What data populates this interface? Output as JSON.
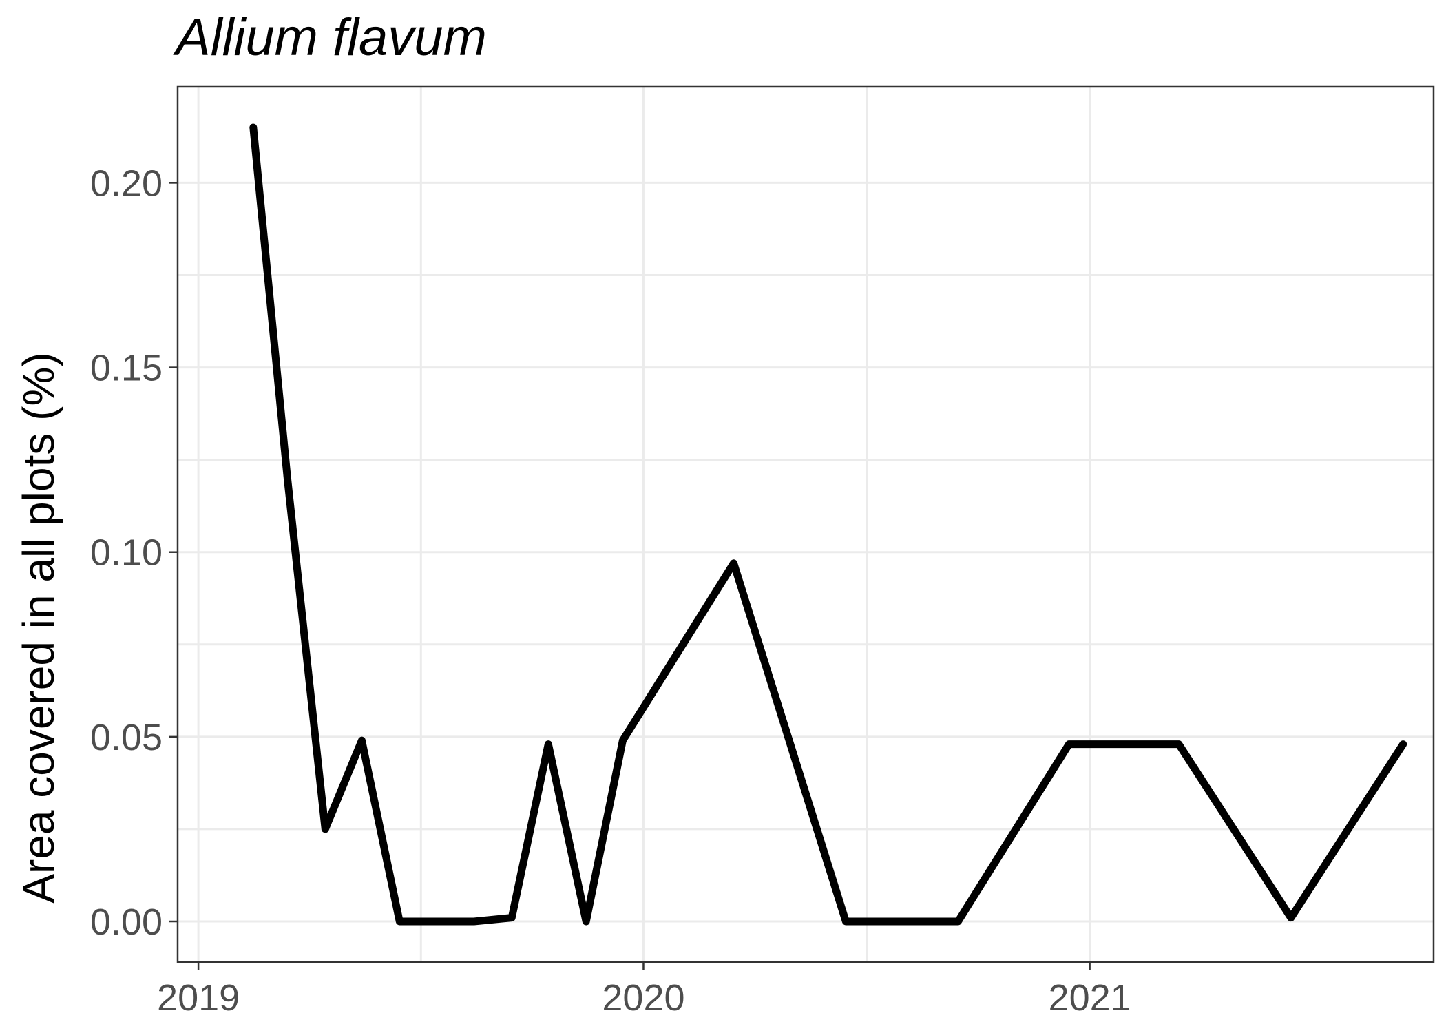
{
  "chart_data": {
    "type": "line",
    "title": "Allium flavum",
    "xlabel": "",
    "ylabel": "Area covered in all plots (%)",
    "xlim": [
      "2018-12-15",
      "2021-10-10"
    ],
    "ylim": [
      -0.011,
      0.226
    ],
    "x_ticks": [
      {
        "value": "2019-01-01",
        "label": "2019"
      },
      {
        "value": "2020-01-01",
        "label": "2020"
      },
      {
        "value": "2021-01-01",
        "label": "2021"
      }
    ],
    "y_ticks": [
      {
        "value": 0.0,
        "label": "0.00"
      },
      {
        "value": 0.05,
        "label": "0.05"
      },
      {
        "value": 0.1,
        "label": "0.10"
      },
      {
        "value": 0.15,
        "label": "0.15"
      },
      {
        "value": 0.2,
        "label": "0.20"
      }
    ],
    "grid": true,
    "series": [
      {
        "color": "#000000",
        "points": [
          {
            "x": "2019-02-15",
            "y": 0.215
          },
          {
            "x": "2019-03-15",
            "y": 0.12
          },
          {
            "x": "2019-04-15",
            "y": 0.025
          },
          {
            "x": "2019-05-15",
            "y": 0.049
          },
          {
            "x": "2019-06-15",
            "y": 0.0
          },
          {
            "x": "2019-07-15",
            "y": 0.0
          },
          {
            "x": "2019-08-15",
            "y": 0.0
          },
          {
            "x": "2019-09-15",
            "y": 0.001
          },
          {
            "x": "2019-10-15",
            "y": 0.048
          },
          {
            "x": "2019-11-15",
            "y": 0.0
          },
          {
            "x": "2019-12-15",
            "y": 0.049
          },
          {
            "x": "2020-03-15",
            "y": 0.097
          },
          {
            "x": "2020-06-15",
            "y": 0.0
          },
          {
            "x": "2020-09-15",
            "y": 0.0
          },
          {
            "x": "2020-12-15",
            "y": 0.048
          },
          {
            "x": "2021-03-15",
            "y": 0.048
          },
          {
            "x": "2021-06-15",
            "y": 0.001
          },
          {
            "x": "2021-09-15",
            "y": 0.048
          }
        ]
      }
    ]
  }
}
